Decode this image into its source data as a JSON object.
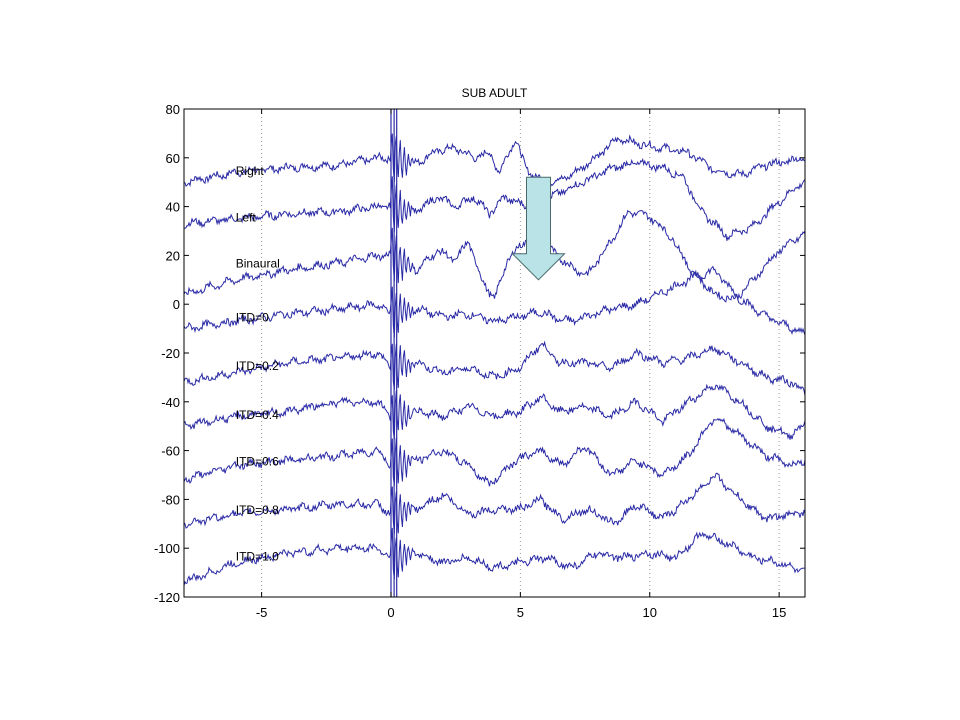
{
  "chart_data": {
    "type": "line",
    "title": "SUB ADULT",
    "xlabel": "",
    "ylabel": "",
    "xlim": [
      -8,
      16
    ],
    "ylim": [
      -120,
      80
    ],
    "xticks": [
      -5,
      0,
      5,
      10,
      15
    ],
    "yticks": [
      80,
      60,
      40,
      20,
      0,
      -20,
      -40,
      -60,
      -80,
      -100,
      -120
    ],
    "grid": "vertical dotted lines at x ticks",
    "line_color": "#2a2aa6",
    "arrow_color": "#b9e3e6",
    "arrow": {
      "x": 5.7,
      "y_top": 52,
      "y_bottom": 10
    },
    "series": [
      {
        "label": "Right",
        "baseline": 55,
        "points": [
          [
            -8,
            50
          ],
          [
            -6,
            54
          ],
          [
            -4,
            56
          ],
          [
            -2,
            57
          ],
          [
            -0.5,
            60
          ],
          [
            0,
            60
          ],
          [
            1,
            58
          ],
          [
            1.8,
            63
          ],
          [
            2.5,
            64
          ],
          [
            3.2,
            60
          ],
          [
            3.8,
            62
          ],
          [
            4.2,
            54
          ],
          [
            4.8,
            68
          ],
          [
            5.2,
            56
          ],
          [
            5.6,
            52
          ],
          [
            6.2,
            50
          ],
          [
            7,
            53
          ],
          [
            8,
            61
          ],
          [
            8.8,
            68
          ],
          [
            9.5,
            66
          ],
          [
            10.5,
            64
          ],
          [
            11.5,
            62
          ],
          [
            12.5,
            55
          ],
          [
            13.5,
            53
          ],
          [
            14.5,
            57
          ],
          [
            16,
            60
          ]
        ]
      },
      {
        "label": "Left",
        "baseline": 36,
        "points": [
          [
            -8,
            33
          ],
          [
            -6,
            35
          ],
          [
            -4,
            37
          ],
          [
            -2,
            38
          ],
          [
            -0.5,
            40
          ],
          [
            0,
            40
          ],
          [
            1,
            38
          ],
          [
            1.8,
            44
          ],
          [
            2.5,
            40
          ],
          [
            3.2,
            44
          ],
          [
            3.8,
            37
          ],
          [
            4.4,
            44
          ],
          [
            5,
            41
          ],
          [
            5.5,
            40
          ],
          [
            6.2,
            44
          ],
          [
            7,
            48
          ],
          [
            7.8,
            52
          ],
          [
            8.6,
            56
          ],
          [
            9.5,
            58
          ],
          [
            10.5,
            56
          ],
          [
            11.3,
            52
          ],
          [
            12,
            38
          ],
          [
            13,
            28
          ],
          [
            14,
            32
          ],
          [
            15,
            42
          ],
          [
            16,
            51
          ]
        ]
      },
      {
        "label": "Binaural",
        "baseline": 17,
        "points": [
          [
            -8,
            4
          ],
          [
            -6,
            10
          ],
          [
            -4,
            14
          ],
          [
            -2,
            17
          ],
          [
            -0.5,
            20
          ],
          [
            0,
            20
          ],
          [
            1,
            14
          ],
          [
            1.8,
            22
          ],
          [
            2.5,
            18
          ],
          [
            3,
            26
          ],
          [
            3.5,
            10
          ],
          [
            4,
            2
          ],
          [
            4.5,
            18
          ],
          [
            5,
            24
          ],
          [
            5.6,
            30
          ],
          [
            6.2,
            22
          ],
          [
            7,
            15
          ],
          [
            7.6,
            12
          ],
          [
            8.5,
            26
          ],
          [
            9.2,
            38
          ],
          [
            10,
            36
          ],
          [
            10.8,
            28
          ],
          [
            11.6,
            14
          ],
          [
            12.5,
            4
          ],
          [
            13.3,
            2
          ],
          [
            14,
            10
          ],
          [
            15,
            22
          ],
          [
            16,
            29
          ]
        ]
      },
      {
        "label": "ITD=0",
        "baseline": -5,
        "points": [
          [
            -8,
            -10
          ],
          [
            -6,
            -7
          ],
          [
            -4,
            -4
          ],
          [
            -2,
            -2
          ],
          [
            -0.5,
            0
          ],
          [
            0,
            -4
          ],
          [
            1,
            -2
          ],
          [
            2,
            -5
          ],
          [
            3,
            -4
          ],
          [
            4,
            -7
          ],
          [
            5,
            -5
          ],
          [
            5.8,
            -3
          ],
          [
            6.4,
            -6
          ],
          [
            7,
            -7
          ],
          [
            7.8,
            -4
          ],
          [
            8.5,
            -2
          ],
          [
            9.5,
            0
          ],
          [
            10.5,
            5
          ],
          [
            11.5,
            10
          ],
          [
            12.5,
            14
          ],
          [
            13.5,
            2
          ],
          [
            14.5,
            -5
          ],
          [
            15.5,
            -10
          ],
          [
            16,
            -12
          ]
        ]
      },
      {
        "label": "ITD=0.2",
        "baseline": -25,
        "points": [
          [
            -8,
            -32
          ],
          [
            -6,
            -28
          ],
          [
            -4,
            -24
          ],
          [
            -2,
            -22
          ],
          [
            -0.5,
            -20
          ],
          [
            0,
            -26
          ],
          [
            1,
            -24
          ],
          [
            2,
            -28
          ],
          [
            3,
            -26
          ],
          [
            4,
            -30
          ],
          [
            5,
            -26
          ],
          [
            5.8,
            -16
          ],
          [
            6.5,
            -24
          ],
          [
            7.5,
            -24
          ],
          [
            8.5,
            -26
          ],
          [
            9.5,
            -20
          ],
          [
            10.5,
            -24
          ],
          [
            11.5,
            -22
          ],
          [
            12.5,
            -18
          ],
          [
            13.5,
            -24
          ],
          [
            14.5,
            -30
          ],
          [
            15.5,
            -32
          ],
          [
            16,
            -36
          ]
        ]
      },
      {
        "label": "ITD=0.4",
        "baseline": -45,
        "points": [
          [
            -8,
            -50
          ],
          [
            -6,
            -46
          ],
          [
            -4,
            -44
          ],
          [
            -2,
            -40
          ],
          [
            -0.5,
            -40
          ],
          [
            0,
            -46
          ],
          [
            1,
            -44
          ],
          [
            2,
            -46
          ],
          [
            3,
            -42
          ],
          [
            4,
            -46
          ],
          [
            5,
            -44
          ],
          [
            5.8,
            -38
          ],
          [
            6.5,
            -44
          ],
          [
            7.5,
            -42
          ],
          [
            8.5,
            -46
          ],
          [
            9.5,
            -40
          ],
          [
            10.5,
            -48
          ],
          [
            11.5,
            -40
          ],
          [
            12.5,
            -33
          ],
          [
            13.5,
            -40
          ],
          [
            14.5,
            -50
          ],
          [
            15.5,
            -54
          ],
          [
            16,
            -48
          ]
        ]
      },
      {
        "label": "ITD=0.6",
        "baseline": -64,
        "points": [
          [
            -8,
            -72
          ],
          [
            -6,
            -66
          ],
          [
            -4,
            -64
          ],
          [
            -2,
            -62
          ],
          [
            -0.5,
            -60
          ],
          [
            0,
            -66
          ],
          [
            1,
            -64
          ],
          [
            2,
            -60
          ],
          [
            3,
            -66
          ],
          [
            3.8,
            -74
          ],
          [
            4.8,
            -64
          ],
          [
            5.8,
            -60
          ],
          [
            6.6,
            -66
          ],
          [
            7.5,
            -58
          ],
          [
            8.5,
            -70
          ],
          [
            9.5,
            -64
          ],
          [
            10.5,
            -70
          ],
          [
            11.5,
            -62
          ],
          [
            12.5,
            -46
          ],
          [
            13.5,
            -54
          ],
          [
            14.5,
            -62
          ],
          [
            15.5,
            -66
          ],
          [
            16,
            -64
          ]
        ]
      },
      {
        "label": "ITD=0.8",
        "baseline": -84,
        "points": [
          [
            -8,
            -90
          ],
          [
            -6,
            -86
          ],
          [
            -4,
            -84
          ],
          [
            -2,
            -82
          ],
          [
            -0.5,
            -82
          ],
          [
            0,
            -86
          ],
          [
            1,
            -84
          ],
          [
            2,
            -78
          ],
          [
            3,
            -86
          ],
          [
            4,
            -84
          ],
          [
            5,
            -84
          ],
          [
            5.8,
            -80
          ],
          [
            6.6,
            -88
          ],
          [
            7.6,
            -84
          ],
          [
            8.6,
            -90
          ],
          [
            9.5,
            -82
          ],
          [
            10.5,
            -88
          ],
          [
            11.5,
            -80
          ],
          [
            12.5,
            -70
          ],
          [
            13.5,
            -80
          ],
          [
            14.5,
            -88
          ],
          [
            15.5,
            -86
          ],
          [
            16,
            -85
          ]
        ]
      },
      {
        "label": "ITD=1.0",
        "baseline": -103,
        "points": [
          [
            -8,
            -114
          ],
          [
            -6,
            -106
          ],
          [
            -4,
            -102
          ],
          [
            -2,
            -100
          ],
          [
            -0.5,
            -100
          ],
          [
            0,
            -104
          ],
          [
            1,
            -102
          ],
          [
            2,
            -106
          ],
          [
            3,
            -104
          ],
          [
            4,
            -108
          ],
          [
            5,
            -106
          ],
          [
            6,
            -104
          ],
          [
            7,
            -108
          ],
          [
            8,
            -102
          ],
          [
            9,
            -104
          ],
          [
            10,
            -102
          ],
          [
            11,
            -104
          ],
          [
            12,
            -94
          ],
          [
            13,
            -98
          ],
          [
            14,
            -104
          ],
          [
            15,
            -106
          ],
          [
            16,
            -110
          ]
        ]
      }
    ]
  }
}
